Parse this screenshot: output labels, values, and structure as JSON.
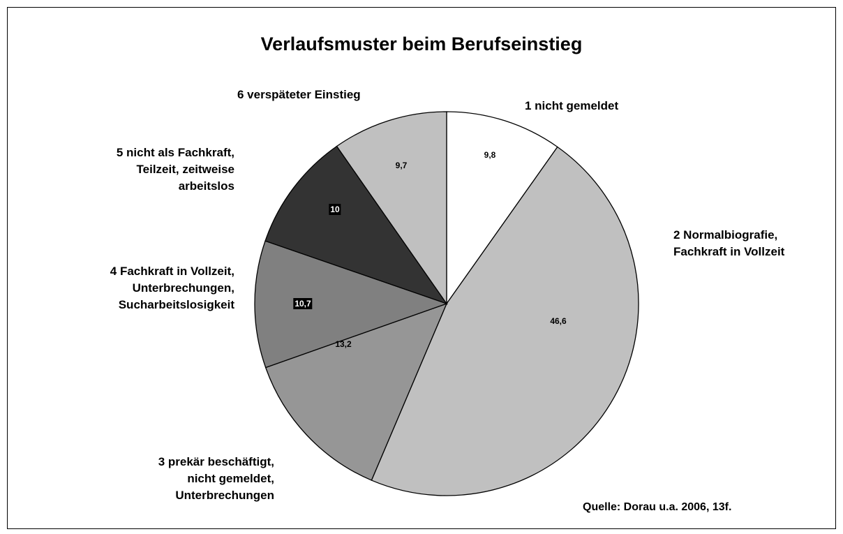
{
  "chart_data": {
    "type": "pie",
    "title": "Verlaufsmuster beim Berufseinstieg",
    "categories": [
      "1 nicht gemeldet",
      "2 Normalbiografie,\nFachkraft in Vollzeit",
      "3 prekär beschäftigt,\nnicht gemeldet,\nUnterbrechungen",
      "4 Fachkraft in Vollzeit,\nUnterbrechungen,\nSucharbeitslosigkeit",
      "5 nicht als Fachkraft,\nTeilzeit, zeitweise\narbeitslos",
      "6 verspäteter Einstieg"
    ],
    "values": [
      9.8,
      46.6,
      13.2,
      10.7,
      10,
      9.7
    ],
    "value_labels": [
      "9,8",
      "46,6",
      "13,2",
      "10,7",
      "10",
      "9,7"
    ],
    "colors": [
      "#ffffff",
      "#c0c0c0",
      "#969696",
      "#808080",
      "#333333",
      "#c0c0c0"
    ],
    "annotation": "Quelle: Dorau u.a. 2006, 13f."
  }
}
